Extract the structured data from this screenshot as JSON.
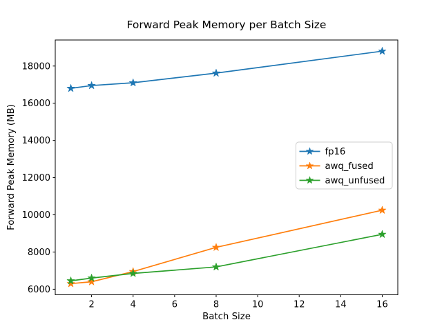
{
  "figure": {
    "background": "#ffffff",
    "spine_color": "#000000",
    "text_color": "#000000"
  },
  "chart_data": {
    "type": "line",
    "title": "Forward Peak Memory per Batch Size",
    "xlabel": "Batch Size",
    "ylabel": "Forward Peak Memory (MB)",
    "x": [
      1,
      2,
      4,
      8,
      16
    ],
    "series": [
      {
        "name": "fp16",
        "color": "#1f77b4",
        "marker": "star",
        "values": [
          16800,
          16950,
          17100,
          17620,
          18800
        ]
      },
      {
        "name": "awq_fused",
        "color": "#ff7f0e",
        "marker": "star",
        "values": [
          6300,
          6400,
          6950,
          8250,
          10250
        ]
      },
      {
        "name": "awq_unfused",
        "color": "#2ca02c",
        "marker": "star",
        "values": [
          6450,
          6600,
          6850,
          7200,
          8950
        ]
      }
    ],
    "xticks": [
      2,
      4,
      6,
      8,
      10,
      12,
      14,
      16
    ],
    "yticks": [
      6000,
      8000,
      10000,
      12000,
      14000,
      16000,
      18000
    ],
    "xlim": [
      0.25,
      16.75
    ],
    "ylim": [
      5700,
      19400
    ],
    "grid": false,
    "legend": {
      "position": "center-right",
      "border_color": "#cccccc",
      "background": "#ffffff",
      "entries": [
        "fp16",
        "awq_fused",
        "awq_unfused"
      ]
    }
  }
}
